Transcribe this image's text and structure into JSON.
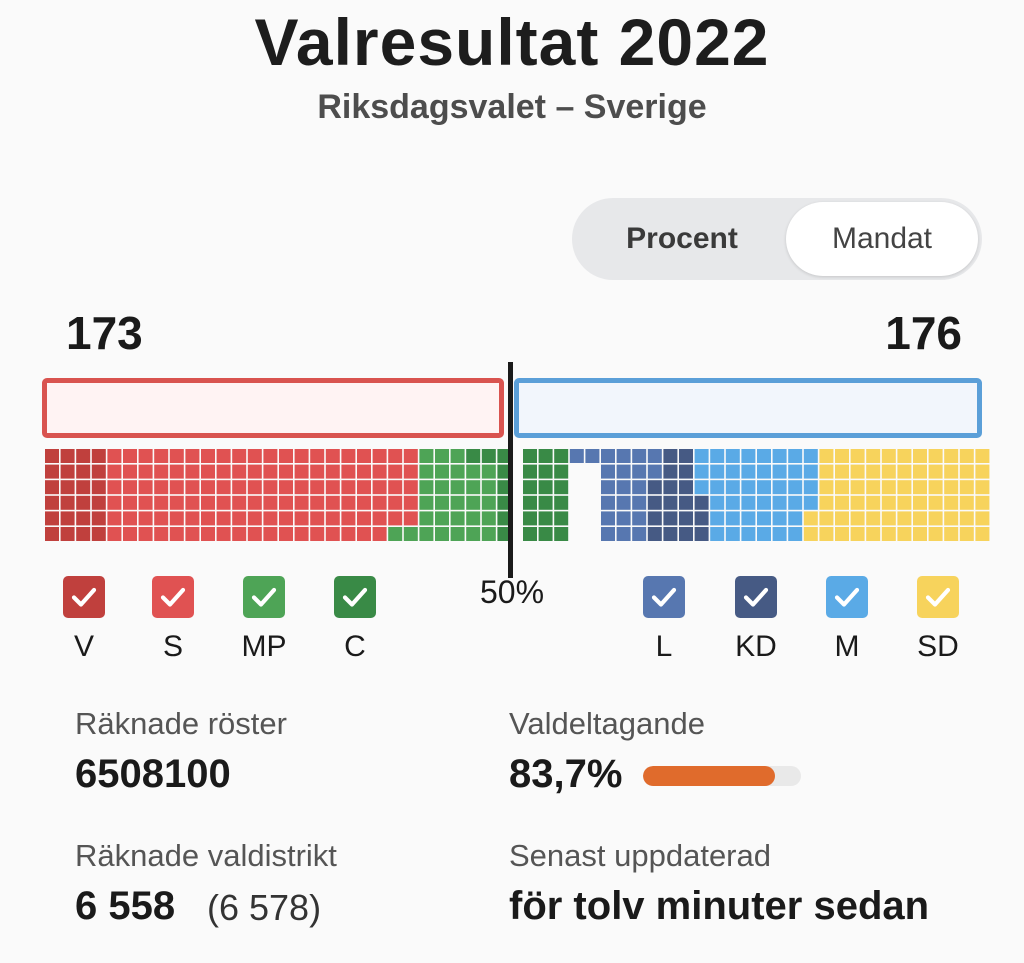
{
  "header": {
    "title": "Valresultat 2022",
    "subtitle": "Riksdagsvalet – Sverige"
  },
  "toggle": {
    "options": [
      "Procent",
      "Mandat"
    ],
    "selected": "Procent"
  },
  "blocs": {
    "left_total": "173",
    "right_total": "176",
    "left_color": "#d9534f",
    "right_color": "#5b9fd8",
    "midpoint_label": "50%"
  },
  "parties": [
    {
      "code": "V",
      "color": "#c0403d",
      "checked": true,
      "icon": "check-icon"
    },
    {
      "code": "S",
      "color": "#e05252",
      "checked": true,
      "icon": "check-icon"
    },
    {
      "code": "MP",
      "color": "#4ea456",
      "checked": true,
      "icon": "check-icon"
    },
    {
      "code": "C",
      "color": "#398a46",
      "checked": true,
      "icon": "check-icon"
    },
    {
      "code": "L",
      "color": "#5777b0",
      "checked": true,
      "icon": "check-icon"
    },
    {
      "code": "KD",
      "color": "#465a84",
      "checked": true,
      "icon": "check-icon"
    },
    {
      "code": "M",
      "color": "#5aaae6",
      "checked": true,
      "icon": "check-icon"
    },
    {
      "code": "SD",
      "color": "#f7d35c",
      "checked": true,
      "icon": "check-icon"
    }
  ],
  "stats": {
    "counted_votes_label": "Räknade röster",
    "counted_votes": "6508100",
    "turnout_label": "Valdeltagande",
    "turnout": "83,7%",
    "turnout_fraction": 0.837,
    "turnout_color": "#e06b2c",
    "districts_label": "Räknade valdistrikt",
    "districts_counted": "6 558",
    "districts_total": "(6 578)",
    "updated_label": "Senast uppdaterad",
    "updated": "för tolv minuter sedan"
  }
}
